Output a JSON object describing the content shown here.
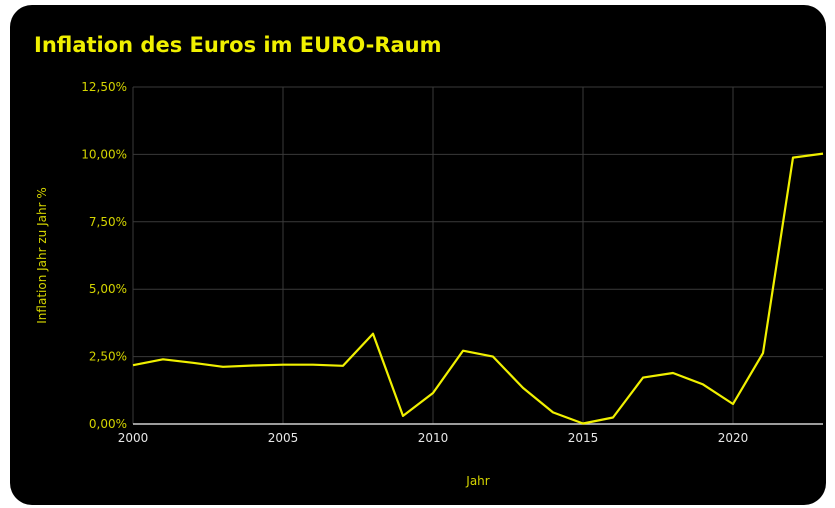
{
  "chart_data": {
    "type": "line",
    "title": "Inflation des Euros im EURO-Raum",
    "xlabel": "Jahr",
    "ylabel": "Inflation Jahr zu Jahr %",
    "x": [
      2000,
      2001,
      2002,
      2003,
      2004,
      2005,
      2006,
      2007,
      2008,
      2009,
      2010,
      2011,
      2012,
      2013,
      2014,
      2015,
      2016,
      2017,
      2018,
      2019,
      2020,
      2021,
      2022,
      2023
    ],
    "series": [
      {
        "values": [
          2.18,
          2.4,
          2.27,
          2.12,
          2.17,
          2.2,
          2.2,
          2.16,
          3.35,
          0.3,
          1.15,
          2.72,
          2.5,
          1.34,
          0.43,
          0.02,
          0.24,
          1.72,
          1.89,
          1.47,
          0.74,
          2.63,
          9.88,
          10.03
        ],
        "color": "#f0f000"
      }
    ],
    "xlim": [
      2000,
      2023
    ],
    "ylim": [
      0,
      12.5
    ],
    "x_ticks": [
      {
        "value": 2000,
        "label": "2000"
      },
      {
        "value": 2005,
        "label": "2005"
      },
      {
        "value": 2010,
        "label": "2010"
      },
      {
        "value": 2015,
        "label": "2015"
      },
      {
        "value": 2020,
        "label": "2020"
      }
    ],
    "y_ticks": [
      {
        "value": 0,
        "label": "0,00%"
      },
      {
        "value": 2.5,
        "label": "2,50%"
      },
      {
        "value": 5,
        "label": "5,00%"
      },
      {
        "value": 7.5,
        "label": "7,50%"
      },
      {
        "value": 10,
        "label": "10,00%"
      },
      {
        "value": 12.5,
        "label": "12,50%"
      }
    ],
    "grid": true,
    "background": "#000000",
    "grid_color": "#3a3a3a"
  }
}
